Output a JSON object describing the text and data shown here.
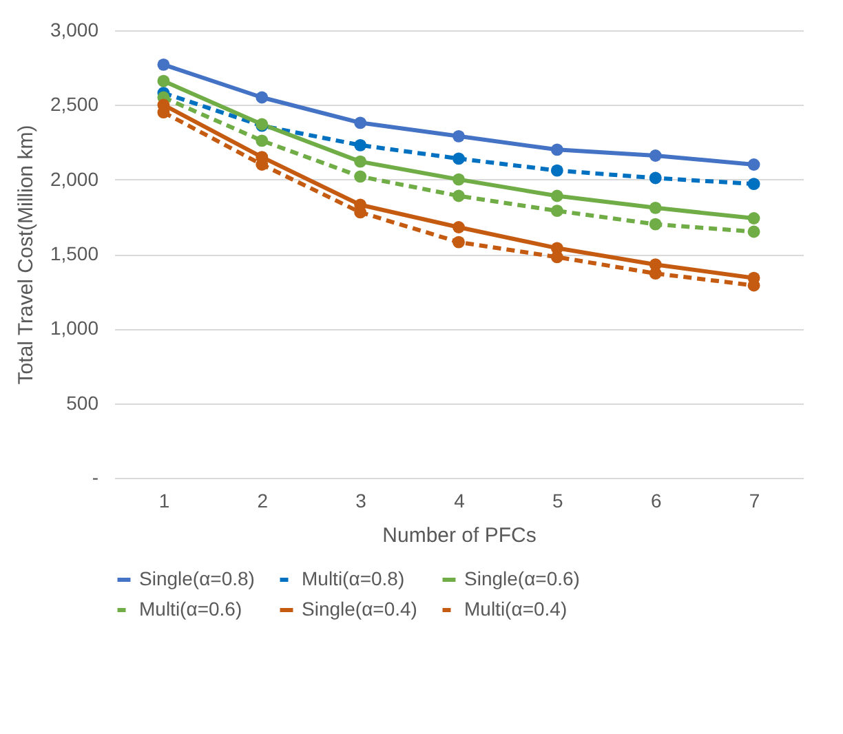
{
  "chart_data": {
    "type": "line",
    "xlabel": "Number of PFCs",
    "ylabel": "Total Travel Cost(Million km)",
    "categories": [
      "1",
      "2",
      "3",
      "4",
      "5",
      "6",
      "7"
    ],
    "series": [
      {
        "name": "Single(α=0.8)",
        "color": "#4472c4",
        "line_style": "solid",
        "values": [
          2770,
          2550,
          2380,
          2290,
          2200,
          2160,
          2100
        ]
      },
      {
        "name": "Multi(α=0.8)",
        "color": "#0070c0",
        "line_style": "dashed",
        "values": [
          2580,
          2360,
          2230,
          2140,
          2060,
          2010,
          1970
        ]
      },
      {
        "name": "Single(α=0.6)",
        "color": "#70ad47",
        "line_style": "solid",
        "values": [
          2660,
          2370,
          2120,
          2000,
          1890,
          1810,
          1740
        ]
      },
      {
        "name": "Multi(α=0.6)",
        "color": "#70ad47",
        "line_style": "dashed",
        "values": [
          2550,
          2260,
          2020,
          1890,
          1790,
          1700,
          1650
        ]
      },
      {
        "name": "Single(α=0.4)",
        "color": "#c55a11",
        "line_style": "solid",
        "values": [
          2500,
          2150,
          1830,
          1680,
          1540,
          1430,
          1340
        ]
      },
      {
        "name": "Multi(α=0.4)",
        "color": "#c55a11",
        "line_style": "dashed",
        "values": [
          2450,
          2100,
          1780,
          1580,
          1480,
          1370,
          1290
        ]
      }
    ],
    "ylim": [
      0,
      3000
    ],
    "yticks": [
      {
        "value": 0,
        "label": "-"
      },
      {
        "value": 500,
        "label": "500"
      },
      {
        "value": 1000,
        "label": "1,000"
      },
      {
        "value": 1500,
        "label": "1,500"
      },
      {
        "value": 2000,
        "label": "2,000"
      },
      {
        "value": 2500,
        "label": "2,500"
      },
      {
        "value": 3000,
        "label": "3,000"
      }
    ],
    "grid": "y",
    "legend": "bottom",
    "marker": "circle"
  }
}
